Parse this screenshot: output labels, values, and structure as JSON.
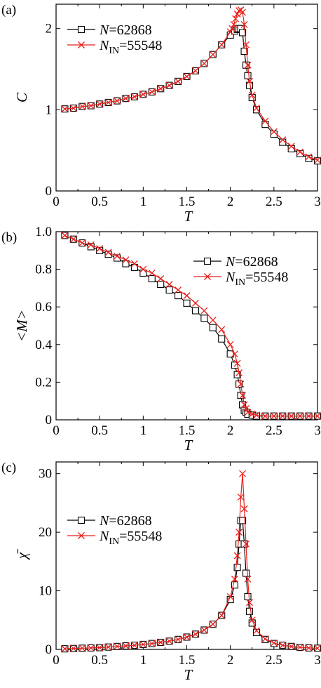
{
  "chart_data": [
    {
      "type": "line",
      "panel_label": "(a)",
      "xlabel": "T",
      "ylabel": "C",
      "xlim": [
        0,
        3
      ],
      "ylim": [
        0,
        2.3
      ],
      "xticks": [
        "0",
        "0.5",
        "1",
        "1.5",
        "2",
        "2.5",
        "3"
      ],
      "yticks": [
        "0",
        "1",
        "2"
      ],
      "ytick_values": [
        0,
        1,
        2
      ],
      "legend_position": "top-left",
      "series": [
        {
          "legend_prefix": "N",
          "legend_sub": "",
          "legend_value": "=62868",
          "color": "#000000",
          "marker": "square",
          "x": [
            0.1,
            0.2,
            0.3,
            0.4,
            0.5,
            0.6,
            0.7,
            0.8,
            0.9,
            1.0,
            1.1,
            1.2,
            1.3,
            1.4,
            1.5,
            1.6,
            1.7,
            1.8,
            1.9,
            2.0,
            2.05,
            2.08,
            2.1,
            2.12,
            2.14,
            2.16,
            2.18,
            2.2,
            2.22,
            2.25,
            2.3,
            2.4,
            2.5,
            2.6,
            2.7,
            2.8,
            2.9,
            3.0
          ],
          "y": [
            1.01,
            1.02,
            1.04,
            1.05,
            1.07,
            1.09,
            1.11,
            1.14,
            1.16,
            1.19,
            1.22,
            1.26,
            1.3,
            1.35,
            1.41,
            1.48,
            1.57,
            1.68,
            1.8,
            1.92,
            1.97,
            1.99,
            2.0,
            2.0,
            1.95,
            1.72,
            1.55,
            1.42,
            1.3,
            1.15,
            1.0,
            0.82,
            0.7,
            0.6,
            0.52,
            0.46,
            0.4,
            0.37
          ]
        },
        {
          "legend_prefix": "N",
          "legend_sub": "IN",
          "legend_value": "=55548",
          "color": "#e8201c",
          "marker": "x",
          "x": [
            0.1,
            0.2,
            0.3,
            0.4,
            0.5,
            0.6,
            0.7,
            0.8,
            0.9,
            1.0,
            1.1,
            1.2,
            1.3,
            1.4,
            1.5,
            1.6,
            1.7,
            1.8,
            1.9,
            2.0,
            2.02,
            2.04,
            2.06,
            2.08,
            2.1,
            2.12,
            2.14,
            2.16,
            2.18,
            2.2,
            2.22,
            2.25,
            2.3,
            2.4,
            2.5,
            2.6,
            2.7,
            2.8,
            2.9,
            3.0
          ],
          "y": [
            1.01,
            1.02,
            1.04,
            1.05,
            1.07,
            1.09,
            1.11,
            1.14,
            1.16,
            1.19,
            1.22,
            1.26,
            1.3,
            1.35,
            1.41,
            1.48,
            1.57,
            1.68,
            1.8,
            1.96,
            2.0,
            2.05,
            2.12,
            2.18,
            2.22,
            2.23,
            2.2,
            2.05,
            1.8,
            1.55,
            1.35,
            1.18,
            1.02,
            0.86,
            0.73,
            0.63,
            0.55,
            0.48,
            0.42,
            0.38
          ]
        }
      ]
    },
    {
      "type": "line",
      "panel_label": "(b)",
      "xlabel": "T",
      "ylabel": "<M>",
      "xlim": [
        0,
        3
      ],
      "ylim": [
        0,
        1.0
      ],
      "xticks": [
        "0",
        "0.5",
        "1",
        "1.5",
        "2",
        "2.5",
        "3"
      ],
      "yticks": [
        "0",
        "0.2",
        "0.4",
        "0.6",
        "0.8",
        "1.0"
      ],
      "ytick_values": [
        0,
        0.2,
        0.4,
        0.6,
        0.8,
        1.0
      ],
      "legend_position": "top-right",
      "series": [
        {
          "legend_prefix": "N",
          "legend_sub": "",
          "legend_value": "=62868",
          "color": "#000000",
          "marker": "square",
          "x": [
            0.1,
            0.2,
            0.3,
            0.4,
            0.5,
            0.6,
            0.7,
            0.8,
            0.9,
            1.0,
            1.1,
            1.2,
            1.3,
            1.4,
            1.5,
            1.6,
            1.7,
            1.8,
            1.9,
            2.0,
            2.05,
            2.08,
            2.1,
            2.12,
            2.14,
            2.16,
            2.18,
            2.2,
            2.25,
            2.3,
            2.4,
            2.5,
            2.6,
            2.7,
            2.8,
            2.9,
            3.0
          ],
          "y": [
            0.98,
            0.96,
            0.94,
            0.92,
            0.9,
            0.88,
            0.86,
            0.83,
            0.81,
            0.78,
            0.75,
            0.72,
            0.69,
            0.66,
            0.62,
            0.58,
            0.54,
            0.49,
            0.43,
            0.35,
            0.29,
            0.24,
            0.19,
            0.13,
            0.08,
            0.05,
            0.04,
            0.03,
            0.025,
            0.02,
            0.02,
            0.02,
            0.02,
            0.02,
            0.02,
            0.02,
            0.02
          ]
        },
        {
          "legend_prefix": "N",
          "legend_sub": "IN",
          "legend_value": "=55548",
          "color": "#e8201c",
          "marker": "x",
          "x": [
            0.1,
            0.2,
            0.3,
            0.4,
            0.5,
            0.6,
            0.7,
            0.8,
            0.9,
            1.0,
            1.1,
            1.2,
            1.3,
            1.4,
            1.5,
            1.6,
            1.7,
            1.8,
            1.9,
            2.0,
            2.05,
            2.08,
            2.1,
            2.12,
            2.14,
            2.16,
            2.18,
            2.2,
            2.25,
            2.3,
            2.4,
            2.5,
            2.6,
            2.7,
            2.8,
            2.9,
            3.0
          ],
          "y": [
            0.98,
            0.96,
            0.94,
            0.93,
            0.91,
            0.89,
            0.87,
            0.85,
            0.83,
            0.8,
            0.78,
            0.75,
            0.72,
            0.69,
            0.66,
            0.62,
            0.58,
            0.53,
            0.48,
            0.4,
            0.35,
            0.3,
            0.25,
            0.19,
            0.13,
            0.08,
            0.06,
            0.04,
            0.03,
            0.025,
            0.02,
            0.02,
            0.02,
            0.02,
            0.02,
            0.02,
            0.02
          ]
        }
      ]
    },
    {
      "type": "line",
      "panel_label": "(c)",
      "xlabel": "T",
      "ylabel": "χ̄",
      "xlim": [
        0,
        3
      ],
      "ylim": [
        0,
        32
      ],
      "xticks": [
        "0",
        "0.5",
        "1",
        "1.5",
        "2",
        "2.5",
        "3"
      ],
      "yticks": [
        "0",
        "10",
        "20",
        "30"
      ],
      "ytick_values": [
        0,
        10,
        20,
        30
      ],
      "legend_position": "top-left",
      "series": [
        {
          "legend_prefix": "N",
          "legend_sub": "",
          "legend_value": "=62868",
          "color": "#000000",
          "marker": "square",
          "x": [
            0.1,
            0.2,
            0.3,
            0.4,
            0.5,
            0.6,
            0.7,
            0.8,
            0.9,
            1.0,
            1.1,
            1.2,
            1.3,
            1.4,
            1.5,
            1.6,
            1.7,
            1.8,
            1.9,
            2.0,
            2.05,
            2.08,
            2.1,
            2.12,
            2.14,
            2.16,
            2.18,
            2.2,
            2.22,
            2.25,
            2.3,
            2.4,
            2.5,
            2.6,
            2.7,
            2.8,
            2.9,
            3.0
          ],
          "y": [
            0.1,
            0.15,
            0.2,
            0.25,
            0.3,
            0.4,
            0.5,
            0.6,
            0.7,
            0.85,
            1.0,
            1.2,
            1.4,
            1.7,
            2.1,
            2.6,
            3.3,
            4.3,
            5.8,
            8.5,
            11,
            14,
            18,
            22,
            22,
            18,
            13,
            9,
            6.5,
            4.5,
            2.9,
            1.7,
            1.0,
            0.7,
            0.5,
            0.35,
            0.25,
            0.2
          ]
        },
        {
          "legend_prefix": "N",
          "legend_sub": "IN",
          "legend_value": "=55548",
          "color": "#e8201c",
          "marker": "x",
          "x": [
            0.1,
            0.2,
            0.3,
            0.4,
            0.5,
            0.6,
            0.7,
            0.8,
            0.9,
            1.0,
            1.1,
            1.2,
            1.3,
            1.4,
            1.5,
            1.6,
            1.7,
            1.8,
            1.9,
            2.0,
            2.05,
            2.08,
            2.1,
            2.12,
            2.14,
            2.16,
            2.18,
            2.2,
            2.22,
            2.25,
            2.3,
            2.4,
            2.5,
            2.6,
            2.7,
            2.8,
            2.9,
            3.0
          ],
          "y": [
            0.1,
            0.15,
            0.2,
            0.25,
            0.3,
            0.4,
            0.5,
            0.6,
            0.7,
            0.85,
            1.0,
            1.2,
            1.4,
            1.7,
            2.1,
            2.6,
            3.3,
            4.3,
            5.8,
            9,
            12,
            16,
            20,
            26,
            30,
            24,
            18,
            12,
            8,
            5,
            3.2,
            1.8,
            1.1,
            0.7,
            0.5,
            0.35,
            0.25,
            0.2
          ]
        }
      ]
    }
  ]
}
